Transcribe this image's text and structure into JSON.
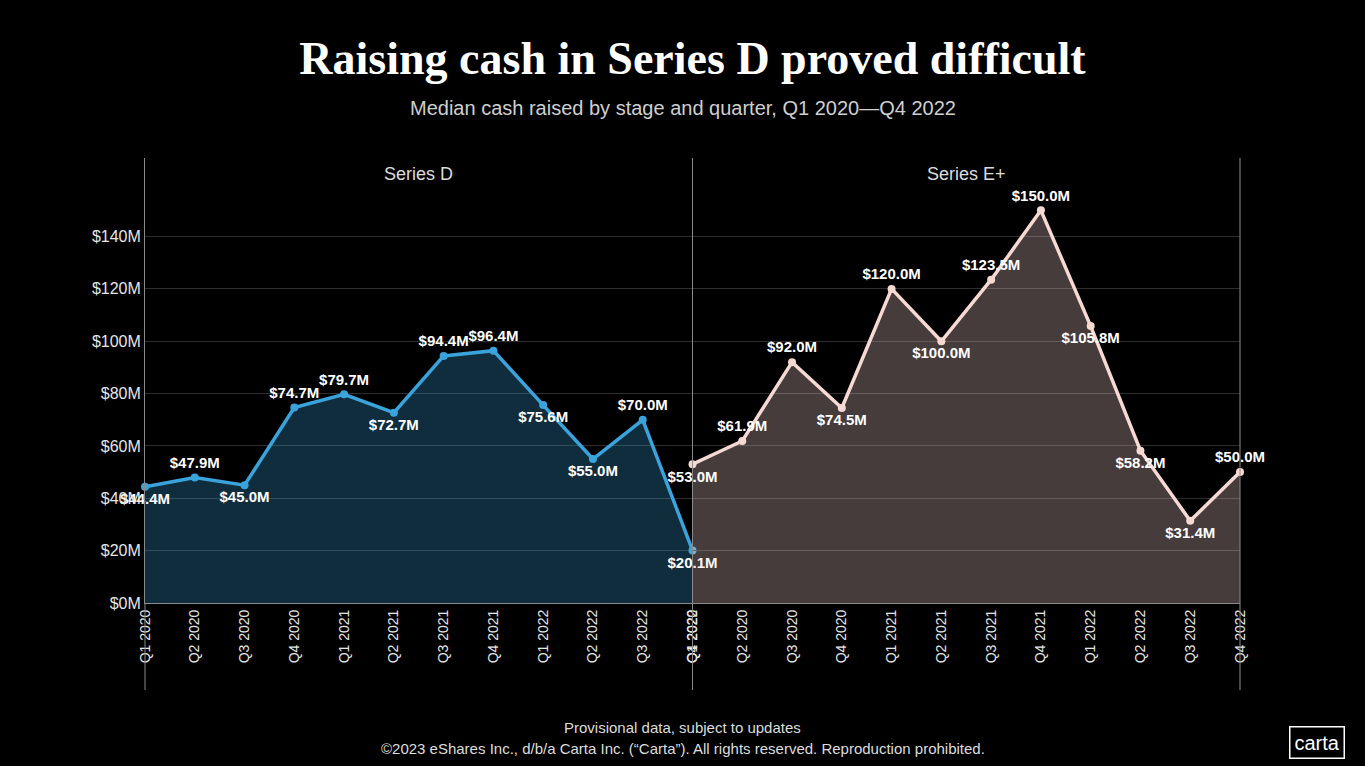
{
  "title": "Raising cash in Series D proved difficult",
  "subtitle": "Median cash raised by stage and quarter, Q1 2020—Q4 2022",
  "footnote": "Provisional data, subject to updates",
  "copyright": "©2023 eShares Inc., d/b/a Carta Inc. (“Carta”). All rights reserved. Reproduction prohibited.",
  "logo": "carta",
  "chart_data": [
    {
      "type": "area",
      "title": "Series D",
      "categories": [
        "Q1 2020",
        "Q2 2020",
        "Q3 2020",
        "Q4 2020",
        "Q1 2021",
        "Q2 2021",
        "Q3 2021",
        "Q4 2021",
        "Q1 2022",
        "Q2 2022",
        "Q3 2022",
        "Q4 2022"
      ],
      "values": [
        44.4,
        47.9,
        45.0,
        74.7,
        79.7,
        72.7,
        94.4,
        96.4,
        75.6,
        55.0,
        70.0,
        20.1
      ],
      "value_labels": [
        "$44.4M",
        "$47.9M",
        "$45.0M",
        "$74.7M",
        "$79.7M",
        "$72.7M",
        "$94.4M",
        "$96.4M",
        "$75.6M",
        "$55.0M",
        "$70.0M",
        "$20.1M"
      ],
      "color": "#3aa3dc",
      "marker": "circle",
      "data_labels": true,
      "grid": true,
      "ylim": [
        0,
        170
      ],
      "yticks": [
        {
          "value": 0,
          "label": "$0M"
        },
        {
          "value": 20,
          "label": "$20M"
        },
        {
          "value": 40,
          "label": "$40M"
        },
        {
          "value": 60,
          "label": "$60M"
        },
        {
          "value": 80,
          "label": "$80M"
        },
        {
          "value": 100,
          "label": "$100M"
        },
        {
          "value": 120,
          "label": "$120M"
        },
        {
          "value": 140,
          "label": "$140M"
        }
      ]
    },
    {
      "type": "area",
      "title": "Series E+",
      "categories": [
        "Q1 2020",
        "Q2 2020",
        "Q3 2020",
        "Q4 2020",
        "Q1 2021",
        "Q2 2021",
        "Q3 2021",
        "Q4 2021",
        "Q1 2022",
        "Q2 2022",
        "Q3 2022",
        "Q4 2022"
      ],
      "values": [
        53.0,
        61.9,
        92.0,
        74.5,
        120.0,
        100.0,
        123.5,
        150.0,
        105.8,
        58.2,
        31.4,
        50.0
      ],
      "value_labels": [
        "$53.0M",
        "$61.9M",
        "$92.0M",
        "$74.5M",
        "$120.0M",
        "$100.0M",
        "$123.5M",
        "$150.0M",
        "$105.8M",
        "$58.2M",
        "$31.4M",
        "$50.0M"
      ],
      "color": "#f7d9d3",
      "marker": "circle",
      "data_labels": true,
      "grid": true,
      "tick_labels": "x",
      "ylim": [
        0,
        170
      ],
      "yticks": [
        {
          "value": 0,
          "label": "$0M"
        },
        {
          "value": 20,
          "label": "$20M"
        },
        {
          "value": 40,
          "label": "$40M"
        },
        {
          "value": 60,
          "label": "$60M"
        },
        {
          "value": 80,
          "label": "$80M"
        },
        {
          "value": 100,
          "label": "$100M"
        },
        {
          "value": 120,
          "label": "$120M"
        },
        {
          "value": 140,
          "label": "$140M"
        }
      ]
    }
  ]
}
